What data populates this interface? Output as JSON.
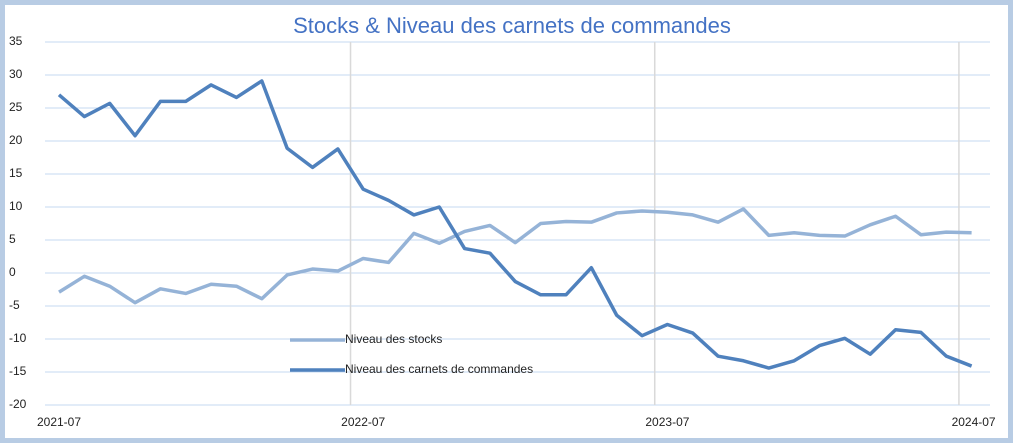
{
  "chart_data": {
    "type": "line",
    "title": "Stocks & Niveau des carnets de commandes",
    "categories": [
      "2021-07",
      null,
      null,
      null,
      null,
      null,
      null,
      null,
      null,
      null,
      null,
      null,
      "2022-07",
      null,
      null,
      null,
      null,
      null,
      null,
      null,
      null,
      null,
      null,
      null,
      "2023-07",
      null,
      null,
      null,
      null,
      null,
      null,
      null,
      null,
      null,
      null,
      null,
      "2024-07"
    ],
    "series": [
      {
        "name": "Niveau des stocks",
        "color": "#95b3d7",
        "values": [
          -2.9,
          -0.5,
          -2,
          -4.5,
          -2.4,
          -3.1,
          -1.7,
          -2,
          -3.9,
          -0.3,
          0.6,
          0.3,
          2.2,
          1.6,
          6,
          4.5,
          6.3,
          7.2,
          4.6,
          7.5,
          7.8,
          7.7,
          9.1,
          9.4,
          9.2,
          8.8,
          7.7,
          9.7,
          5.7,
          6.1,
          5.7,
          5.6,
          7.3,
          8.6,
          5.8,
          6.2,
          6.1
        ]
      },
      {
        "name": "Niveau des carnets de commandes",
        "color": "#4f81bd",
        "values": [
          27,
          23.7,
          25.7,
          20.8,
          26,
          26,
          28.5,
          26.6,
          29.1,
          18.9,
          16,
          18.8,
          12.7,
          11,
          8.8,
          10,
          3.7,
          3,
          -1.3,
          -3.3,
          -3.3,
          0.8,
          -6.4,
          -9.5,
          -7.8,
          -9.1,
          -12.6,
          -13.3,
          -14.4,
          -13.3,
          -11,
          -9.9,
          -12.3,
          -8.6,
          -9,
          -12.6,
          -14.1
        ]
      }
    ],
    "ylim": [
      -20,
      35
    ],
    "yticks": [
      -20,
      -15,
      -10,
      -5,
      0,
      5,
      10,
      15,
      20,
      25,
      30,
      35
    ],
    "grid": true
  }
}
